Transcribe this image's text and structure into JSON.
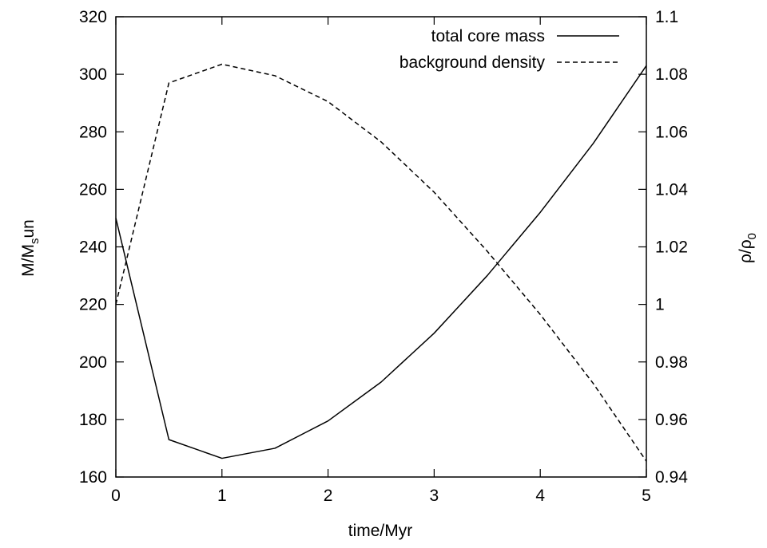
{
  "chart_data": {
    "type": "line",
    "x_axis": {
      "label": "time/Myr",
      "range": [
        0,
        5
      ],
      "ticks": [
        0,
        1,
        2,
        3,
        4,
        5
      ],
      "tick_labels": [
        "0",
        "1",
        "2",
        "3",
        "4",
        "5"
      ]
    },
    "y_axis_left": {
      "label_main": "M/M",
      "label_sub": "s",
      "label_tail": "un",
      "range": [
        160,
        320
      ],
      "ticks": [
        160,
        180,
        200,
        220,
        240,
        260,
        280,
        300,
        320
      ],
      "tick_labels": [
        "160",
        "180",
        "200",
        "220",
        "240",
        "260",
        "280",
        "300",
        "320"
      ]
    },
    "y_axis_right": {
      "label_main": "ρ/ρ",
      "label_sub": "0",
      "range": [
        0.94,
        1.1
      ],
      "ticks": [
        0.94,
        0.96,
        0.98,
        1.0,
        1.02,
        1.04,
        1.06,
        1.08,
        1.1
      ],
      "tick_labels": [
        "0.94",
        "0.96",
        "0.98",
        "1",
        "1.02",
        "1.04",
        "1.06",
        "1.08",
        "1.1"
      ]
    },
    "grid": false,
    "legend_position": "top-right",
    "series": [
      {
        "name": "total core mass",
        "axis": "left",
        "line_style": "solid",
        "color": "#000000",
        "x": [
          0,
          0.5,
          1,
          1.5,
          2,
          2.5,
          3,
          3.5,
          4,
          4.5,
          5
        ],
        "y": [
          250,
          173,
          166.5,
          170,
          179.5,
          193,
          210,
          230,
          252,
          276,
          303
        ]
      },
      {
        "name": "background density",
        "axis": "right",
        "line_style": "dashed",
        "color": "#000000",
        "x": [
          0,
          0.5,
          1,
          1.5,
          2,
          2.5,
          3,
          3.5,
          4,
          4.5,
          5
        ],
        "y": [
          1.0,
          1.077,
          1.0835,
          1.0795,
          1.0705,
          1.0565,
          1.039,
          1.0185,
          0.9965,
          0.9725,
          0.9455
        ]
      }
    ]
  }
}
